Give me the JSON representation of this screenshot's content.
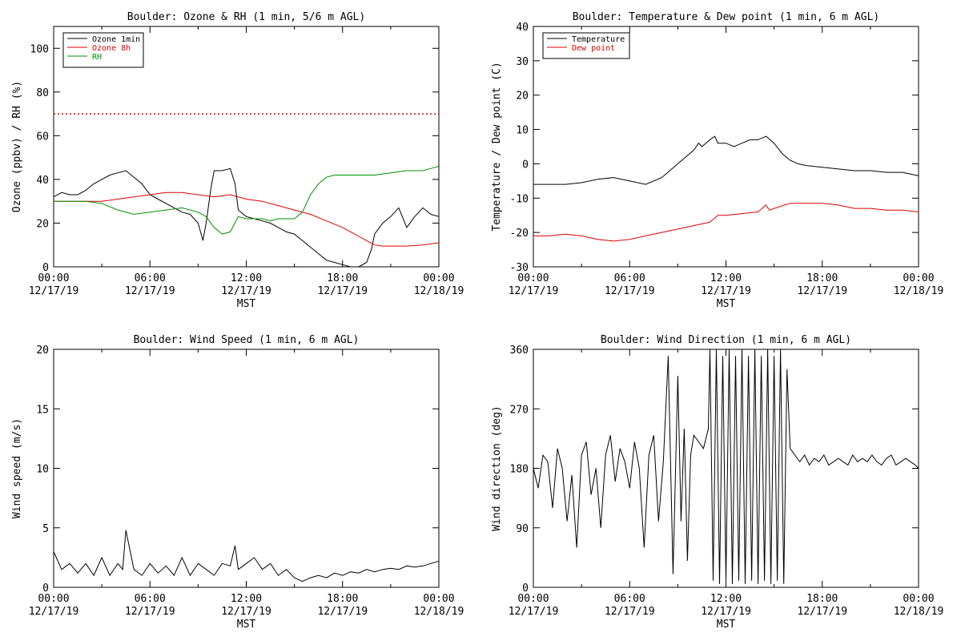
{
  "time_axis": {
    "ticks": [
      "00:00",
      "06:00",
      "12:00",
      "18:00",
      "00:00"
    ],
    "dates": [
      "12/17/19",
      "12/17/19",
      "12/17/19",
      "12/17/19",
      "12/18/19"
    ],
    "xlabel": "MST",
    "range_hours": [
      0,
      24
    ]
  },
  "chart_data": [
    {
      "id": "ozone_rh",
      "type": "line",
      "title": "Boulder: Ozone & RH (1 min, 5/6 m AGL)",
      "ylabel": "Ozone (ppbv) / RH (%)",
      "ylim": [
        0,
        110
      ],
      "yticks": [
        0,
        20,
        40,
        60,
        80,
        100
      ],
      "legend": {
        "placement": "top-left"
      },
      "reference_line": {
        "y": 70,
        "color": "#e00000",
        "style": "dotted"
      },
      "series": [
        {
          "name": "Ozone 1min",
          "color": "#000000",
          "x": [
            0,
            0.5,
            1,
            1.5,
            2,
            2.5,
            3,
            3.5,
            4,
            4.5,
            5,
            5.5,
            6,
            6.5,
            7,
            7.5,
            8,
            8.5,
            9,
            9.3,
            9.5,
            9.8,
            10,
            10.5,
            11,
            11.3,
            11.5,
            12,
            12.5,
            13,
            13.5,
            14,
            14.5,
            15,
            15.5,
            16,
            16.5,
            17,
            17.5,
            18,
            18.5,
            19,
            19.5,
            19.8,
            20,
            20.5,
            21,
            21.5,
            22,
            22.5,
            23,
            23.5,
            24
          ],
          "y": [
            32,
            34,
            33,
            33,
            35,
            38,
            40,
            42,
            43,
            44,
            41,
            38,
            33,
            31,
            29,
            27,
            25,
            24,
            20,
            12,
            20,
            36,
            44,
            44,
            45,
            38,
            26,
            23,
            22,
            21,
            20,
            18,
            16,
            15,
            12,
            9,
            6,
            3,
            2,
            1,
            0,
            0,
            2,
            8,
            15,
            20,
            23,
            27,
            18,
            23,
            27,
            24,
            23
          ]
        },
        {
          "name": "Ozone 8h",
          "color": "#e00000",
          "x": [
            0,
            1,
            2,
            3,
            4,
            5,
            6,
            7,
            8,
            9,
            10,
            11,
            12,
            13,
            14,
            15,
            16,
            17,
            18,
            19,
            19.5,
            20,
            20.5,
            21,
            22,
            23,
            24
          ],
          "y": [
            30,
            30,
            30,
            30,
            31,
            32,
            33,
            34,
            34,
            33,
            32,
            33,
            31,
            30,
            28,
            26,
            24,
            21,
            18,
            14,
            12,
            10,
            9.5,
            9.5,
            9.5,
            10,
            11
          ]
        },
        {
          "name": "RH",
          "color": "#009000",
          "x": [
            0,
            1,
            2,
            3,
            4,
            5,
            6,
            7,
            8,
            9,
            9.5,
            10,
            10.5,
            11,
            11.5,
            12,
            12.5,
            13,
            13.5,
            14,
            14.5,
            15,
            15.5,
            16,
            16.5,
            17,
            17.5,
            18,
            19,
            20,
            21,
            22,
            23,
            23.5,
            24
          ],
          "y": [
            30,
            30,
            30,
            29,
            26,
            24,
            25,
            26,
            27,
            25,
            23,
            18,
            15,
            16,
            23,
            22,
            22,
            22,
            21,
            22,
            22,
            22,
            25,
            33,
            38,
            41,
            42,
            42,
            42,
            42,
            43,
            44,
            44,
            45,
            46
          ]
        }
      ]
    },
    {
      "id": "temp_dew",
      "type": "line",
      "title": "Boulder: Temperature & Dew point (1 min, 6 m AGL)",
      "ylabel": "Temperature / Dew point (C)",
      "ylim": [
        -30,
        40
      ],
      "yticks": [
        -30,
        -20,
        -10,
        0,
        10,
        20,
        30,
        40
      ],
      "legend": {
        "placement": "top-left"
      },
      "series": [
        {
          "name": "Temperature",
          "color": "#000000",
          "x": [
            0,
            1,
            2,
            3,
            4,
            5,
            6,
            7,
            8,
            8.5,
            9,
            9.5,
            10,
            10.3,
            10.5,
            11,
            11.3,
            11.5,
            12,
            12.5,
            13,
            13.5,
            14,
            14.5,
            15,
            15.5,
            16,
            16.5,
            17,
            18,
            19,
            20,
            21,
            22,
            23,
            23.5,
            24
          ],
          "y": [
            -6,
            -6,
            -6,
            -5.5,
            -4.5,
            -4,
            -5,
            -6,
            -4,
            -2,
            0,
            2,
            4,
            6,
            5,
            7,
            8,
            6,
            6,
            5,
            6,
            7,
            7,
            8,
            6,
            3,
            1,
            0,
            -0.5,
            -1,
            -1.5,
            -2,
            -2,
            -2.5,
            -2.5,
            -3,
            -3.5
          ]
        },
        {
          "name": "Dew point",
          "color": "#e00000",
          "x": [
            0,
            1,
            2,
            3,
            4,
            5,
            6,
            7,
            8,
            9,
            10,
            11,
            11.5,
            12,
            13,
            14,
            14.5,
            14.7,
            15,
            16,
            16.5,
            17,
            18,
            19,
            20,
            21,
            22,
            23,
            24
          ],
          "y": [
            -21,
            -21,
            -20.5,
            -21,
            -22,
            -22.5,
            -22,
            -21,
            -20,
            -19,
            -18,
            -17,
            -15,
            -15,
            -14.5,
            -14,
            -12,
            -13.5,
            -13,
            -11.5,
            -11.5,
            -11.5,
            -11.5,
            -12,
            -13,
            -13,
            -13.5,
            -13.5,
            -14
          ]
        }
      ]
    },
    {
      "id": "wind_speed",
      "type": "line",
      "title": "Boulder: Wind Speed (1 min, 6 m AGL)",
      "ylabel": "Wind speed (m/s)",
      "ylim": [
        0,
        20
      ],
      "yticks": [
        0,
        5,
        10,
        15,
        20
      ],
      "series": [
        {
          "color": "#000000",
          "x": [
            0,
            0.5,
            1,
            1.5,
            2,
            2.5,
            3,
            3.5,
            4,
            4.3,
            4.5,
            5,
            5.5,
            6,
            6.5,
            7,
            7.5,
            8,
            8.5,
            9,
            9.5,
            10,
            10.5,
            11,
            11.3,
            11.5,
            12,
            12.5,
            13,
            13.5,
            14,
            14.5,
            15,
            15.5,
            16,
            16.5,
            17,
            17.5,
            18,
            18.5,
            19,
            19.5,
            20,
            20.5,
            21,
            21.5,
            22,
            22.5,
            23,
            23.5,
            24
          ],
          "y": [
            3,
            1.5,
            2,
            1.2,
            2,
            1,
            2.5,
            1,
            2,
            1.5,
            4.8,
            1.5,
            1,
            2,
            1.2,
            1.8,
            1,
            2.5,
            1,
            2,
            1.5,
            1,
            2,
            1.8,
            3.5,
            1.5,
            2,
            2.5,
            1.5,
            2,
            1,
            1.5,
            0.8,
            0.5,
            0.8,
            1,
            0.8,
            1.2,
            1,
            1.3,
            1.2,
            1.5,
            1.3,
            1.5,
            1.6,
            1.5,
            1.8,
            1.7,
            1.8,
            2,
            2.2
          ]
        }
      ]
    },
    {
      "id": "wind_dir",
      "type": "line",
      "title": "Boulder: Wind Direction (1 min, 6 m AGL)",
      "ylabel": "Wind direction (deg)",
      "ylim": [
        0,
        360
      ],
      "yticks": [
        0,
        90,
        180,
        270,
        360
      ],
      "series": [
        {
          "color": "#000000",
          "x": [
            0,
            0.3,
            0.6,
            0.9,
            1.2,
            1.5,
            1.8,
            2.1,
            2.4,
            2.7,
            3,
            3.3,
            3.6,
            3.9,
            4.2,
            4.5,
            4.8,
            5.1,
            5.4,
            5.7,
            6,
            6.3,
            6.6,
            6.9,
            7.2,
            7.5,
            7.8,
            8.1,
            8.4,
            8.7,
            9,
            9.2,
            9.4,
            9.6,
            9.8,
            10,
            10.3,
            10.6,
            10.9,
            11,
            11.2,
            11.4,
            11.6,
            11.8,
            12,
            12.2,
            12.4,
            12.6,
            12.8,
            13,
            13.2,
            13.4,
            13.6,
            13.8,
            14,
            14.2,
            14.4,
            14.6,
            14.8,
            15,
            15.2,
            15.4,
            15.6,
            15.8,
            16,
            16.3,
            16.6,
            16.9,
            17.2,
            17.5,
            17.8,
            18.1,
            18.4,
            18.7,
            19,
            19.3,
            19.6,
            19.9,
            20.2,
            20.5,
            20.8,
            21.1,
            21.4,
            21.7,
            22,
            22.3,
            22.6,
            22.9,
            23.2,
            23.5,
            23.8,
            24
          ],
          "y": [
            180,
            150,
            200,
            190,
            120,
            210,
            180,
            100,
            170,
            60,
            200,
            220,
            140,
            180,
            90,
            200,
            230,
            160,
            210,
            190,
            150,
            220,
            180,
            60,
            200,
            230,
            100,
            190,
            350,
            20,
            320,
            100,
            240,
            40,
            200,
            230,
            220,
            210,
            240,
            360,
            10,
            360,
            5,
            350,
            10,
            360,
            5,
            350,
            10,
            360,
            5,
            350,
            10,
            360,
            5,
            350,
            10,
            360,
            5,
            350,
            10,
            360,
            5,
            330,
            210,
            200,
            190,
            200,
            185,
            195,
            190,
            200,
            185,
            190,
            195,
            190,
            185,
            200,
            190,
            195,
            190,
            200,
            190,
            185,
            195,
            200,
            185,
            190,
            195,
            190,
            185,
            180
          ]
        }
      ]
    }
  ]
}
